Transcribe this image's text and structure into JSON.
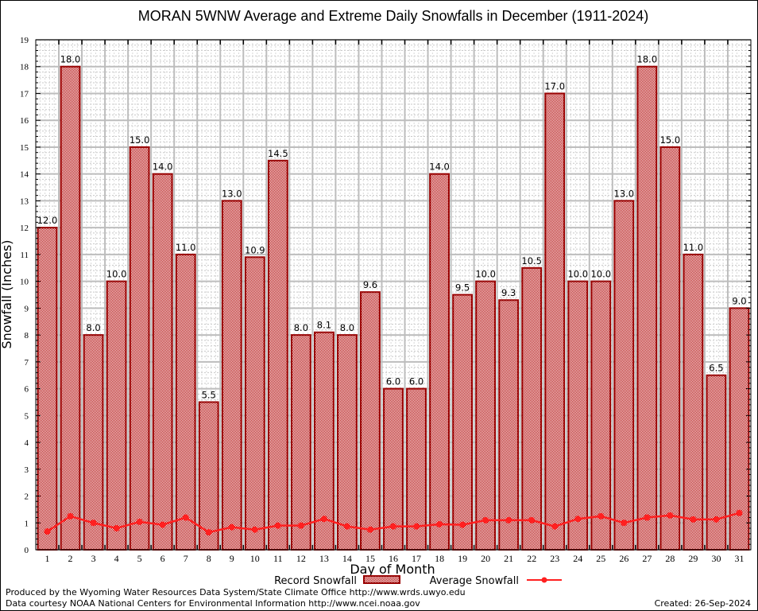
{
  "chart_data": {
    "type": "bar",
    "title": "MORAN 5WNW Average and Extreme Daily Snowfalls in December (1911-2024)",
    "xlabel": "Day of Month",
    "ylabel": "Snowfall (Inches)",
    "ylim": [
      0,
      19
    ],
    "yticks": [
      0,
      1,
      2,
      3,
      4,
      5,
      6,
      7,
      8,
      9,
      10,
      11,
      12,
      13,
      14,
      15,
      16,
      17,
      18,
      19
    ],
    "grid": true,
    "legend_position": "bottom",
    "categories": [
      "1",
      "2",
      "3",
      "4",
      "5",
      "6",
      "7",
      "8",
      "9",
      "10",
      "11",
      "12",
      "13",
      "14",
      "15",
      "16",
      "17",
      "18",
      "19",
      "20",
      "21",
      "22",
      "23",
      "24",
      "25",
      "26",
      "27",
      "28",
      "29",
      "30",
      "31"
    ],
    "series": [
      {
        "name": "Record Snowfall",
        "type": "bar",
        "color": "#990000",
        "values": [
          12.0,
          18.0,
          8.0,
          10.0,
          15.0,
          14.0,
          11.0,
          5.5,
          13.0,
          10.9,
          14.5,
          8.0,
          8.1,
          8.0,
          9.6,
          6.0,
          6.0,
          14.0,
          9.5,
          10.0,
          9.3,
          10.5,
          17.0,
          10.0,
          10.0,
          13.0,
          18.0,
          15.0,
          11.0,
          6.5,
          9.0
        ],
        "labels": [
          "12.0",
          "18.0",
          "8.0",
          "10.0",
          "15.0",
          "14.0",
          "11.0",
          "5.5",
          "13.0",
          "10.9",
          "14.5",
          "8.0",
          "8.1",
          "8.0",
          "9.6",
          "6.0",
          "6.0",
          "14.0",
          "9.5",
          "10.0",
          "9.3",
          "10.5",
          "17.0",
          "10.0",
          "10.0",
          "13.0",
          "18.0",
          "15.0",
          "11.0",
          "6.5",
          "9.0"
        ]
      },
      {
        "name": "Average Snowfall",
        "type": "line",
        "color": "#ff2020",
        "values": [
          0.68,
          1.25,
          1.0,
          0.8,
          1.04,
          0.93,
          1.2,
          0.65,
          0.84,
          0.75,
          0.9,
          0.9,
          1.15,
          0.87,
          0.75,
          0.87,
          0.87,
          0.95,
          0.93,
          1.1,
          1.1,
          1.1,
          0.87,
          1.15,
          1.25,
          1.0,
          1.2,
          1.28,
          1.13,
          1.13,
          1.37
        ]
      }
    ]
  },
  "footer": {
    "line1": "Produced by the Wyoming Water Resources Data System/State Climate Office http://www.wrds.uwyo.edu",
    "line2": "Data courtesy NOAA National Centers for Environmental Information http://www.ncei.noaa.gov",
    "created": "Created: 26-Sep-2024"
  }
}
